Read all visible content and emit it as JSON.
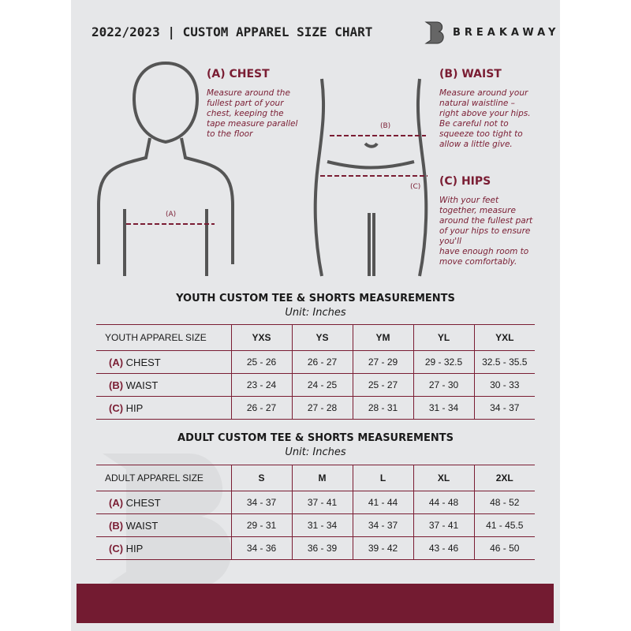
{
  "header": {
    "title": "2022/2023  |  CUSTOM APPAREL SIZE CHART",
    "brand": "BREAKAWAY"
  },
  "colors": {
    "accent": "#7a1d33",
    "background": "#e6e7e9"
  },
  "guides": {
    "chest": {
      "heading": "(A) CHEST",
      "marker": "(A)",
      "text": "Measure around the\nfullest part of your\nchest, keeping the\ntape measure parallel\nto the floor"
    },
    "waist": {
      "heading": "(B) WAIST",
      "marker": "(B)",
      "text": "Measure around your\nnatural waistline –\nright above your hips.\nBe careful not to\nsqueeze too tight to\nallow a little give."
    },
    "hips": {
      "heading": "(C) HIPS",
      "marker": "(C)",
      "text": "With your feet\ntogether, measure\naround the fullest part\nof your hips to ensure\nyou'll\nhave enough room to\nmove comfortably."
    }
  },
  "youth": {
    "title": "YOUTH CUSTOM TEE & SHORTS MEASUREMENTS",
    "unit": "Unit: Inches",
    "header": "YOUTH APPAREL SIZE",
    "sizes": [
      "YXS",
      "YS",
      "YM",
      "YL",
      "YXL"
    ],
    "rows": [
      {
        "letter": "(A)",
        "label": "CHEST",
        "values": [
          "25 - 26",
          "26 - 27",
          "27 - 29",
          "29 - 32.5",
          "32.5 - 35.5"
        ]
      },
      {
        "letter": "(B)",
        "label": "WAIST",
        "values": [
          "23 - 24",
          "24 - 25",
          "25 - 27",
          "27 - 30",
          "30 - 33"
        ]
      },
      {
        "letter": "(C)",
        "label": "HIP",
        "values": [
          "26 - 27",
          "27 - 28",
          "28 - 31",
          "31 - 34",
          "34 - 37"
        ]
      }
    ]
  },
  "adult": {
    "title": "ADULT CUSTOM TEE & SHORTS MEASUREMENTS",
    "unit": "Unit: Inches",
    "header": "ADULT APPAREL SIZE",
    "sizes": [
      "S",
      "M",
      "L",
      "XL",
      "2XL"
    ],
    "rows": [
      {
        "letter": "(A)",
        "label": "CHEST",
        "values": [
          "34 - 37",
          "37 - 41",
          "41 - 44",
          "44 - 48",
          "48 - 52"
        ]
      },
      {
        "letter": "(B)",
        "label": "WAIST",
        "values": [
          "29 - 31",
          "31 - 34",
          "34 - 37",
          "37 - 41",
          "41 - 45.5"
        ]
      },
      {
        "letter": "(C)",
        "label": "HIP",
        "values": [
          "34 - 36",
          "36 - 39",
          "39 - 42",
          "43 - 46",
          "46 - 50"
        ]
      }
    ]
  }
}
